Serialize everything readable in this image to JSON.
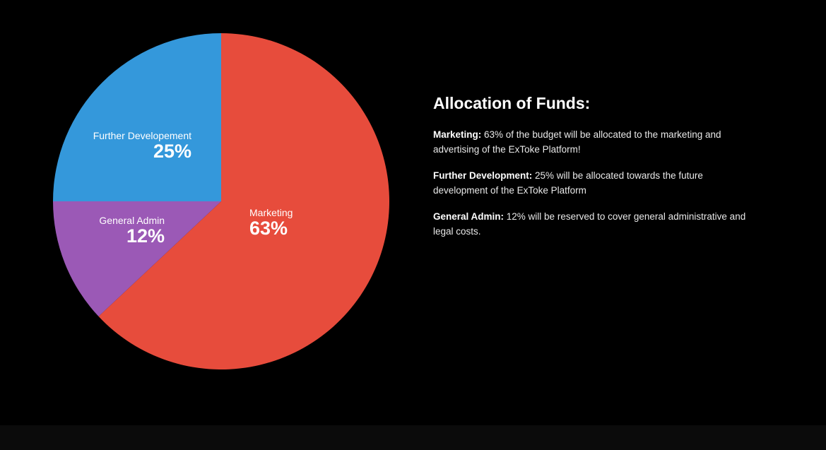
{
  "chart_data": {
    "type": "pie",
    "slices": [
      {
        "name": "Marketing",
        "value": 63,
        "label": "63%",
        "color": "#e74c3c"
      },
      {
        "name": "General Admin",
        "value": 12,
        "label": "12%",
        "color": "#9b59b6"
      },
      {
        "name": "Further Developement",
        "value": 25,
        "label": "25%",
        "color": "#3498db"
      }
    ],
    "start": "12 o'clock",
    "direction": "clockwise"
  },
  "info": {
    "title": "Allocation of Funds:",
    "items": [
      {
        "label": "Marketing:",
        "text": " 63% of the budget will be allocated to the marketing and advertising of the ExToke Platform!"
      },
      {
        "label": "Further Development:",
        "text": " 25% will be allocated towards the future development of the ExToke Platform"
      },
      {
        "label": "General Admin:",
        "text": " 12% will be reserved to cover general administrative and legal costs."
      }
    ]
  },
  "colors": {
    "background": "#000000",
    "footer": "#0b0b0b",
    "text": "#ffffff"
  }
}
